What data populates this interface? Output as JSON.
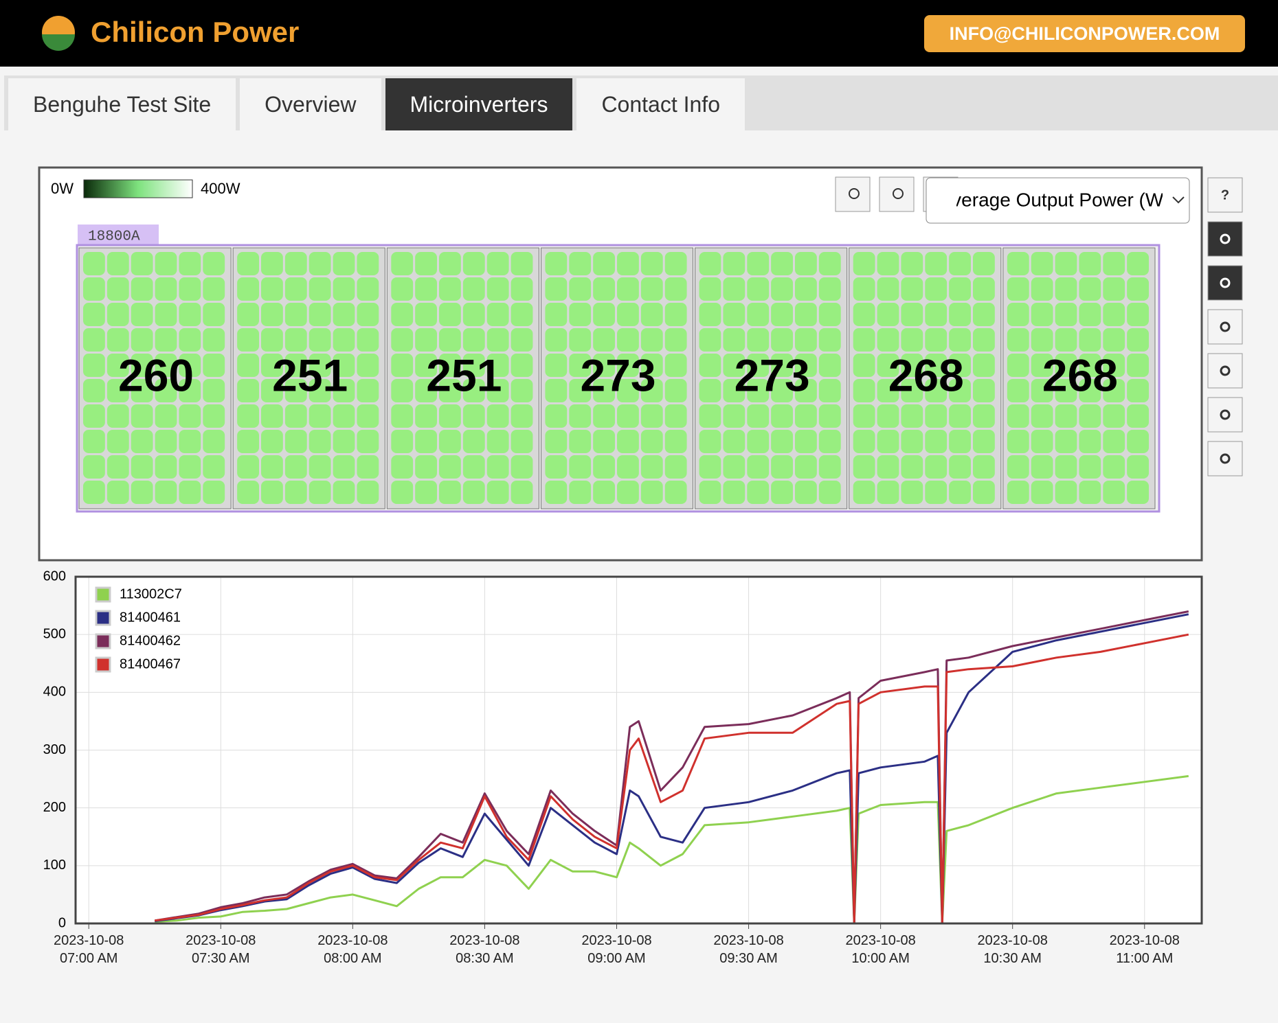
{
  "header": {
    "logo": "Chilicon Power",
    "email": "INFO@CHILICONPOWER.COM"
  },
  "tabs": [
    "Benguhe Test Site",
    "Overview",
    "Microinverters",
    "Contact Info"
  ],
  "map": {
    "scale_min": "0W",
    "scale_max": "400W",
    "dropdown": "Average Output Power (W)",
    "array_label": "18800A",
    "panels": [
      260,
      251,
      251,
      273,
      273,
      268,
      268
    ],
    "help_icon": "?"
  },
  "chart_data": {
    "type": "line",
    "x": [
      "2023-10-08 07:15",
      "2023-10-08 07:20",
      "2023-10-08 07:25",
      "2023-10-08 07:30",
      "2023-10-08 07:35",
      "2023-10-08 07:40",
      "2023-10-08 07:45",
      "2023-10-08 07:50",
      "2023-10-08 07:55",
      "2023-10-08 08:00",
      "2023-10-08 08:05",
      "2023-10-08 08:10",
      "2023-10-08 08:15",
      "2023-10-08 08:20",
      "2023-10-08 08:25",
      "2023-10-08 08:30",
      "2023-10-08 08:35",
      "2023-10-08 08:40",
      "2023-10-08 08:45",
      "2023-10-08 08:50",
      "2023-10-08 08:55",
      "2023-10-08 09:00",
      "2023-10-08 09:03",
      "2023-10-08 09:05",
      "2023-10-08 09:10",
      "2023-10-08 09:15",
      "2023-10-08 09:20",
      "2023-10-08 09:30",
      "2023-10-08 09:40",
      "2023-10-08 09:50",
      "2023-10-08 09:53",
      "2023-10-08 09:54",
      "2023-10-08 09:55",
      "2023-10-08 10:00",
      "2023-10-08 10:10",
      "2023-10-08 10:13",
      "2023-10-08 10:14",
      "2023-10-08 10:15",
      "2023-10-08 10:20",
      "2023-10-08 10:30",
      "2023-10-08 10:40",
      "2023-10-08 10:50",
      "2023-10-08 11:00",
      "2023-10-08 11:10"
    ],
    "series": [
      {
        "name": "113002C7",
        "color": "#8fd14f",
        "values": [
          3,
          5,
          10,
          12,
          20,
          22,
          25,
          35,
          45,
          50,
          40,
          30,
          60,
          80,
          80,
          110,
          100,
          60,
          110,
          90,
          90,
          80,
          140,
          130,
          100,
          120,
          170,
          175,
          185,
          195,
          200,
          0,
          190,
          205,
          210,
          210,
          0,
          160,
          170,
          200,
          225,
          235,
          245,
          255
        ]
      },
      {
        "name": "81400461",
        "color": "#2b2f85",
        "values": [
          4,
          9,
          14,
          23,
          30,
          38,
          42,
          66,
          86,
          97,
          77,
          70,
          105,
          130,
          115,
          190,
          145,
          100,
          200,
          170,
          140,
          120,
          230,
          220,
          150,
          140,
          200,
          210,
          230,
          260,
          265,
          0,
          260,
          270,
          280,
          290,
          0,
          330,
          400,
          470,
          490,
          505,
          520,
          535
        ]
      },
      {
        "name": "81400462",
        "color": "#7b2d5a",
        "values": [
          5,
          11,
          17,
          28,
          35,
          45,
          50,
          73,
          93,
          103,
          83,
          78,
          115,
          155,
          140,
          225,
          160,
          120,
          230,
          190,
          160,
          135,
          340,
          350,
          230,
          270,
          340,
          345,
          360,
          390,
          400,
          0,
          390,
          420,
          435,
          440,
          0,
          455,
          460,
          480,
          495,
          510,
          525,
          540
        ]
      },
      {
        "name": "81400467",
        "color": "#d0312d",
        "values": [
          5,
          10,
          15,
          25,
          32,
          40,
          45,
          70,
          90,
          100,
          80,
          75,
          110,
          140,
          130,
          220,
          150,
          110,
          220,
          180,
          150,
          130,
          300,
          320,
          210,
          230,
          320,
          330,
          330,
          380,
          385,
          0,
          380,
          400,
          410,
          410,
          0,
          435,
          440,
          445,
          460,
          470,
          485,
          500
        ]
      }
    ],
    "xlim": [
      "2023-10-08 06:57",
      "2023-10-08 11:13"
    ],
    "xticks": [
      {
        "value": "2023-10-08 07:00",
        "label": "2023-10-08\n07:00 AM"
      },
      {
        "value": "2023-10-08 07:30",
        "label": "2023-10-08\n07:30 AM"
      },
      {
        "value": "2023-10-08 08:00",
        "label": "2023-10-08\n08:00 AM"
      },
      {
        "value": "2023-10-08 08:30",
        "label": "2023-10-08\n08:30 AM"
      },
      {
        "value": "2023-10-08 09:00",
        "label": "2023-10-08\n09:00 AM"
      },
      {
        "value": "2023-10-08 09:30",
        "label": "2023-10-08\n09:30 AM"
      },
      {
        "value": "2023-10-08 10:00",
        "label": "2023-10-08\n10:00 AM"
      },
      {
        "value": "2023-10-08 10:30",
        "label": "2023-10-08\n10:30 AM"
      },
      {
        "value": "2023-10-08 11:00",
        "label": "2023-10-08\n11:00 AM"
      }
    ],
    "ylim": [
      0,
      600
    ],
    "yticks": [
      0,
      100,
      200,
      300,
      400,
      500,
      600
    ],
    "grid": true,
    "legend": "top-left"
  }
}
